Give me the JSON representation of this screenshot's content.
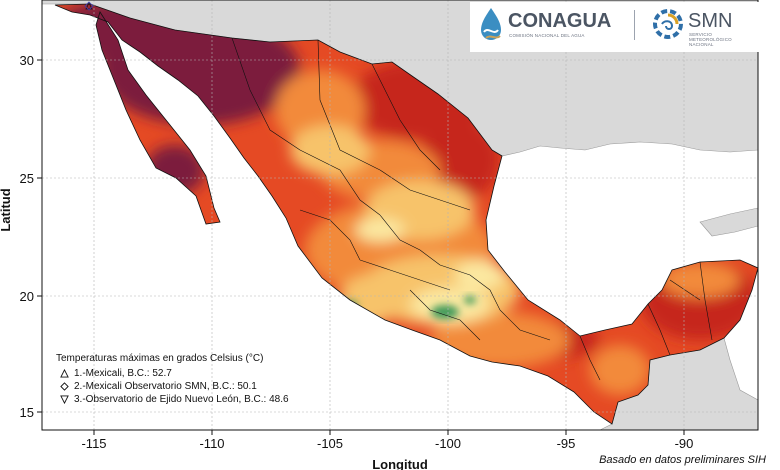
{
  "logos": {
    "conagua_name": "CONAGUA",
    "conagua_subtitle": "COMISIÓN NACIONAL DEL AGUA",
    "smn_name": "SMN",
    "smn_subtitle_1": "SERVICIO",
    "smn_subtitle_2": "METEOROLÓGICO",
    "smn_subtitle_3": "NACIONAL"
  },
  "map": {
    "x_axis_label": "Longitud",
    "y_axis_label": "Latitud",
    "x_ticks": [
      "-115",
      "-110",
      "-105",
      "-100",
      "-95",
      "-90"
    ],
    "y_ticks": [
      "30",
      "25",
      "20",
      "15"
    ],
    "colors": {
      "ocean": "#ffffff",
      "land_outside": "#d9d9d9",
      "extreme_heat": "#7b1c3c",
      "very_hot": "#c6261f",
      "hot": "#e54a24",
      "warm": "#f28a3a",
      "mild": "#f7c36a",
      "cool": "#fbe8a0",
      "coolest": "#3f9a5a"
    }
  },
  "legend": {
    "title": "Temperaturas máximas en grados Celsius (°C)",
    "stations": [
      {
        "symbol": "triangle-icon",
        "text": "1.-Mexicali, B.C.: 52.7"
      },
      {
        "symbol": "diamond-icon",
        "text": "2.-Mexicali Observatorio SMN, B.C.: 50.1"
      },
      {
        "symbol": "down-triangle-icon",
        "text": "3.-Observatorio de Ejido Nuevo León, B.C.: 48.6"
      }
    ]
  },
  "footnote": "Basado en datos preliminares SIH"
}
